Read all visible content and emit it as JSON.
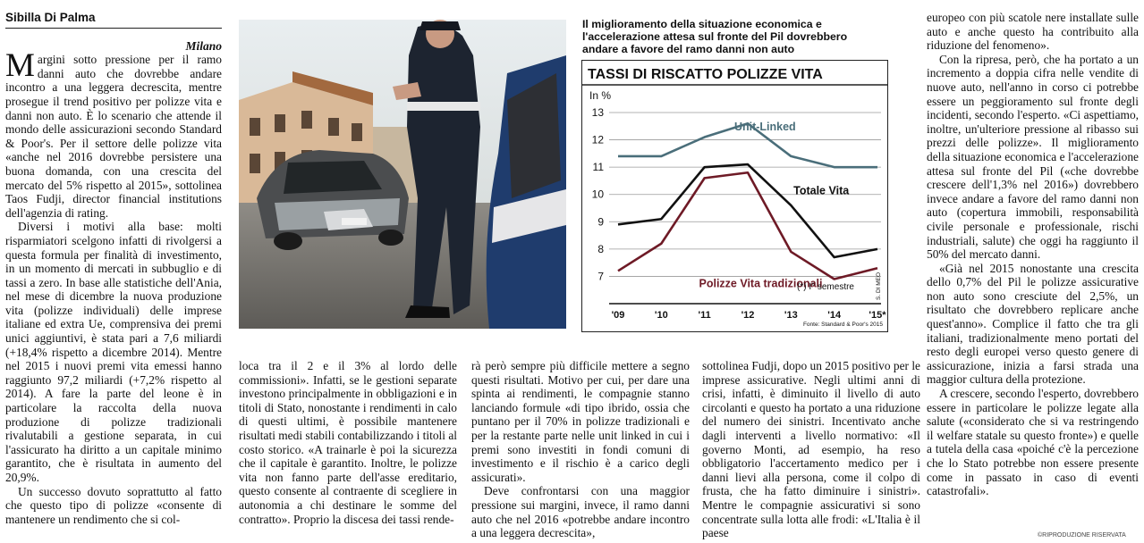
{
  "article": {
    "byline": "Sibilla Di Palma",
    "dateline": "Milano",
    "dropcap": "M",
    "col1": [
      "argini sotto pressione per il ramo danni auto che dovrebbe andare incontro a una leggera decrescita, mentre prosegue il trend positivo per polizze vita e danni non auto. È lo scenario che attende il mondo delle assicurazioni secondo Standard & Poor's. Per il settore delle polizze vita «anche nel 2016 dovrebbe persistere una buona domanda, con una crescita del mercato del 5% rispetto al 2015», sottolinea Taos Fudji, director financial institutions dell'agenzia di rating.",
      "Diversi i motivi alla base: molti risparmiatori scelgono infatti di rivolgersi a questa formula per finalità di investimento, in un momento di mercati in subbuglio e di tassi a zero. In base alle statistiche dell'Ania, nel mese di dicembre la nuova produzione vita (polizze individuali) delle imprese italiane ed extra Ue, comprensiva dei premi unici aggiuntivi, è stata pari a 7,6 miliardi (+18,4% rispetto a dicembre 2014). Mentre nel 2015 i nuovi premi vita emessi hanno raggiunto 97,2 miliardi (+7,2% rispetto al 2014). A fare la parte del leone è in particolare la raccolta della nuova produzione di polizze tradizionali rivalutabili a gestione separata, in cui l'assicurato ha diritto a un capitale minimo garantito, che è risultata in aumento del 20,9%.",
      "Un successo dovuto soprattutto al fatto che questo tipo di polizze «consente di mantenere un rendimento che si col-"
    ],
    "col2": [
      "loca tra il 2 e il 3% al lordo delle commissioni». Infatti, se le gestioni separate investono principalmente in obbligazioni e in titoli di Stato, nonostante i rendimenti in calo di questi ultimi, è possibile mantenere risultati medi stabili contabilizzando i titoli al costo storico. «A trainarle è poi la sicurezza che il capitale è garantito. Inoltre, le polizze vita non fanno parte dell'asse ereditario, questo consente al contraente di scegliere in autonomia a chi destinare le somme del contratto». Proprio la discesa dei tassi rende-"
    ],
    "col3": [
      "rà però sempre più difficile mettere a segno questi risultati. Motivo per cui, per dare una spinta ai rendimenti, le compagnie stanno lanciando formule «di tipo ibrido, ossia che puntano per il 70% in polizze tradizionali e per la restante parte nelle unit linked in cui i premi sono investiti in fondi comuni di investimento e il rischio è a carico degli assicurati».",
      "Deve confrontarsi con una maggior pressione sui margini, invece, il ramo danni auto che nel 2016 «potrebbe andare incontro a una leggera decrescita»,"
    ],
    "col4": [
      "sottolinea Fudji, dopo un 2015 positivo per le imprese assicurative. Negli ultimi anni di crisi, infatti, è diminuito il livello di auto circolanti e questo ha portato a una riduzione del numero dei sinistri. Incentivato anche dagli interventi a livello normativo: «Il governo Monti, ad esempio, ha reso obbligatorio l'accertamento medico per i danni lievi alla persona, come il colpo di frusta, che ha fatto diminuire i sinistri». Mentre le compagnie assicurativi si sono concentrate sulla lotta alle frodi: «L'Italia è il paese"
    ],
    "col5": [
      "europeo con più scatole nere installate sulle auto e anche questo ha contribuito alla riduzione del fenomeno».",
      "Con la ripresa, però, che ha portato a un incremento a doppia cifra nelle vendite di nuove auto, nell'anno in corso ci potrebbe essere un peggioramento sul fronte degli incidenti, secondo l'esperto. «Ci aspettiamo, inoltre, un'ulteriore pressione al ribasso sui prezzi delle polizze». Il miglioramento della situazione economica e l'accelerazione attesa sul fronte del Pil («che dovrebbe crescere dell'1,3% nel 2016») dovrebbero invece andare a favore del ramo danni non auto (copertura immobili, responsabilità civile personale e professionale, rischi industriali, salute) che oggi ha raggiunto il 50% del mercato danni.",
      "«Già nel 2015 nonostante una crescita dello 0,7% del Pil le polizze assicurative non auto sono cresciute del 2,5%, un risultato che dovrebbero replicare anche quest'anno». Complice il fatto che tra gli italiani, tradizionalmente meno portati del resto degli europei verso questo genere di assicurazione, inizia a farsi strada una maggior cultura della protezione.",
      "A crescere, secondo l'esperto, dovrebbero essere in particolare le polizze legate alla salute («considerato che si va restringendo il welfare statale su questo fronte») e quelle a tutela della casa «poiché c'è la percezione che lo Stato potrebbe non essere presente come in passato in caso di eventi catastrofali»."
    ],
    "copyright": "©RIPRODUZIONE RISERVATA"
  },
  "photo": {
    "description_icon": "car-accident-photo"
  },
  "caption": "Il miglioramento della situazione economica e l'accelerazione attesa sul fronte del Pil dovrebbero andare a favore del ramo danni non auto",
  "chart_data": {
    "type": "line",
    "title": "TASSI DI RISCATTO POLIZZE VITA",
    "ylabel": "In %",
    "x": [
      "'09",
      "'10",
      "'11",
      "'12",
      "'13",
      "'14",
      "'15*"
    ],
    "ylim": [
      6,
      13
    ],
    "yticks": [
      7,
      8,
      9,
      10,
      11,
      12,
      13
    ],
    "grid": true,
    "note": "(*) I° semestre",
    "source": "Fonte: Standard & Poor's 2015",
    "credit": "S. DI MEO",
    "series": [
      {
        "name": "Unit-Linked",
        "color": "#4a6e7a",
        "values": [
          11.4,
          11.4,
          12.1,
          12.6,
          11.4,
          11.0,
          11.0
        ]
      },
      {
        "name": "Totale Vita",
        "color": "#111111",
        "values": [
          8.9,
          9.1,
          11.0,
          11.1,
          9.6,
          7.7,
          8.0
        ]
      },
      {
        "name": "Polizze Vita tradizionali",
        "color": "#6e1a26",
        "values": [
          7.2,
          8.2,
          10.6,
          10.8,
          7.9,
          6.9,
          7.3
        ]
      }
    ]
  }
}
